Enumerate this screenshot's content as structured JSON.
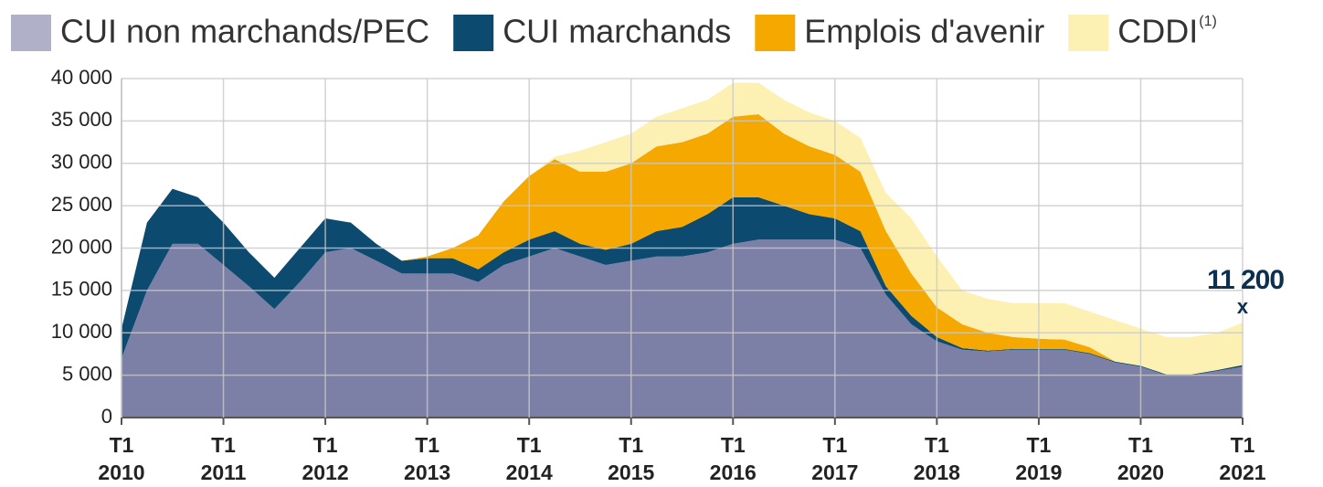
{
  "chart_data": {
    "type": "stacked_area",
    "categories": [
      "T1 2010",
      null,
      null,
      null,
      "T1 2011",
      null,
      null,
      null,
      "T1 2012",
      null,
      null,
      null,
      "T1 2013",
      null,
      null,
      null,
      "T1 2014",
      null,
      null,
      null,
      "T1 2015",
      null,
      null,
      null,
      "T1 2016",
      null,
      null,
      null,
      "T1 2017",
      null,
      null,
      null,
      "T1 2018",
      null,
      null,
      null,
      "T1 2019",
      null,
      null,
      null,
      "T1 2020",
      null,
      null,
      null,
      "T1 2021"
    ],
    "series": [
      {
        "name": "CUI non marchands/PEC",
        "color": "#7d80a6",
        "legend_color": "#b1b0c9",
        "values": [
          7000,
          15000,
          20500,
          20500,
          18000,
          15500,
          12800,
          16000,
          19500,
          20000,
          18500,
          17000,
          17000,
          17000,
          16000,
          18000,
          19000,
          20000,
          19000,
          18000,
          18500,
          19000,
          19000,
          19500,
          20500,
          21000,
          21000,
          21000,
          21000,
          20000,
          14500,
          11000,
          9000,
          8000,
          7800,
          8000,
          8000,
          8000,
          7500,
          6500,
          6000,
          5000,
          5000,
          5500,
          6000
        ]
      },
      {
        "name": "CUI marchands",
        "color": "#0d4a70",
        "values": [
          3500,
          8000,
          6500,
          5500,
          5000,
          4000,
          3700,
          4000,
          4000,
          3000,
          2000,
          1500,
          1800,
          1800,
          1500,
          1500,
          2000,
          2000,
          1500,
          1800,
          2000,
          3000,
          3500,
          4500,
          5500,
          5000,
          4000,
          3000,
          2500,
          2000,
          1000,
          1000,
          500,
          200,
          100,
          100,
          100,
          100,
          100,
          100,
          100,
          100,
          100,
          100,
          200
        ]
      },
      {
        "name": "Emplois d'avenir",
        "color": "#f5a800",
        "values": [
          0,
          0,
          0,
          0,
          0,
          0,
          0,
          0,
          0,
          0,
          0,
          0,
          200,
          1200,
          4000,
          6000,
          7500,
          8500,
          8500,
          9200,
          9500,
          10000,
          10000,
          9500,
          9500,
          9800,
          8500,
          8000,
          7500,
          7000,
          6500,
          5000,
          3500,
          2800,
          2100,
          1400,
          1200,
          1100,
          700,
          0,
          0,
          0,
          0,
          0,
          0
        ]
      },
      {
        "name": "CDDI",
        "footnote_mark": "(1)",
        "color": "#fcf1b2",
        "values": [
          0,
          0,
          0,
          0,
          0,
          0,
          0,
          0,
          0,
          0,
          0,
          0,
          0,
          0,
          0,
          0,
          0,
          300,
          2500,
          3500,
          3500,
          3500,
          4000,
          4000,
          4000,
          3700,
          4000,
          4000,
          4000,
          4000,
          4500,
          6500,
          6000,
          4000,
          4000,
          4000,
          4200,
          4300,
          4200,
          4900,
          4400,
          4400,
          4400,
          4400,
          5000
        ]
      }
    ],
    "ylim": [
      0,
      40000
    ],
    "yticks": [
      0,
      {
        "value": 5000,
        "label": "5 000"
      },
      {
        "value": 10000,
        "label": "10 000"
      },
      {
        "value": 15000,
        "label": "15 000"
      },
      {
        "value": 20000,
        "label": "20 000"
      },
      {
        "value": 25000,
        "label": "25 000"
      },
      {
        "value": 30000,
        "label": "30 000"
      },
      {
        "value": 35000,
        "label": "35 000"
      },
      {
        "value": 40000,
        "label": "40 000"
      }
    ],
    "grid": true,
    "legend": "top",
    "annotation": {
      "text": "11 200",
      "marker": "x"
    }
  }
}
